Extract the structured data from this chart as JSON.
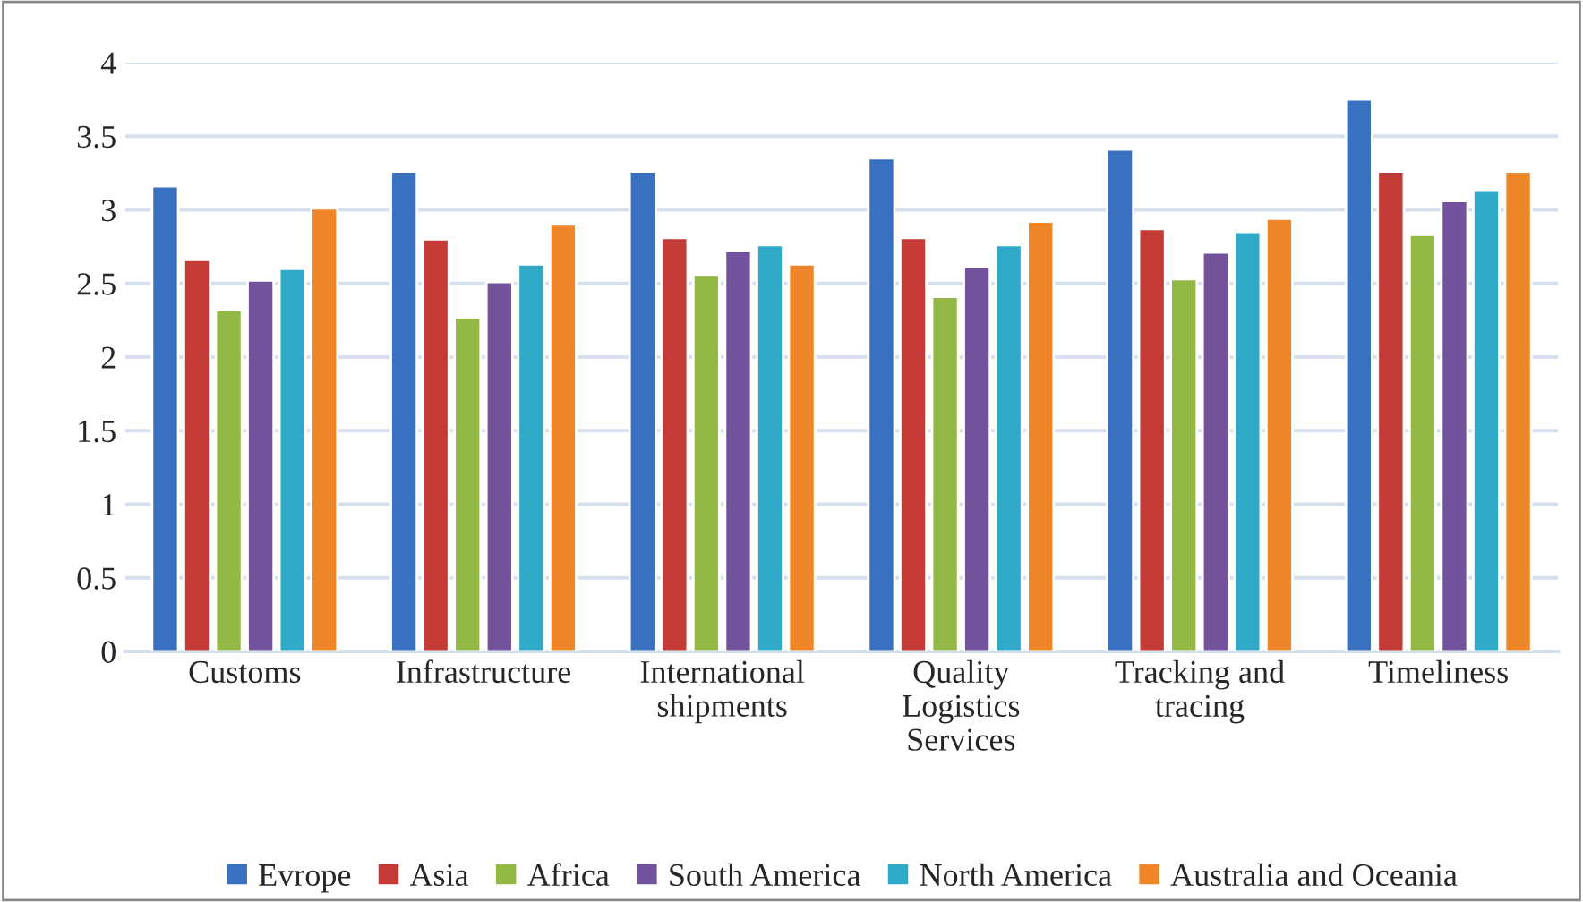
{
  "chart_data": {
    "type": "bar",
    "categories": [
      "Customs",
      "Infrastructure",
      "International\nshipments",
      "Quality\nLogistics\nServices",
      "Tracking and\ntracing",
      "Timeliness"
    ],
    "series": [
      {
        "name": "Evrope",
        "color": "#3a70c0",
        "values": [
          3.16,
          3.26,
          3.26,
          3.35,
          3.41,
          3.75
        ]
      },
      {
        "name": "Asia",
        "color": "#c43a36",
        "values": [
          2.66,
          2.8,
          2.81,
          2.81,
          2.87,
          3.26
        ]
      },
      {
        "name": "Africa",
        "color": "#94b845",
        "values": [
          2.32,
          2.27,
          2.56,
          2.41,
          2.53,
          2.83
        ]
      },
      {
        "name": "South America",
        "color": "#73529c",
        "values": [
          2.52,
          2.51,
          2.72,
          2.61,
          2.71,
          3.06
        ]
      },
      {
        "name": "North America",
        "color": "#31a9c8",
        "values": [
          2.6,
          2.63,
          2.76,
          2.76,
          2.85,
          3.13
        ]
      },
      {
        "name": "Australia and Oceania",
        "color": "#f0862a",
        "values": [
          3.01,
          2.9,
          2.63,
          2.92,
          2.94,
          3.26
        ]
      }
    ],
    "ylim": [
      0,
      4
    ],
    "yticks": [
      0,
      0.5,
      1,
      1.5,
      2,
      2.5,
      3,
      3.5,
      4
    ],
    "grid": "y",
    "legend": "bottom"
  }
}
